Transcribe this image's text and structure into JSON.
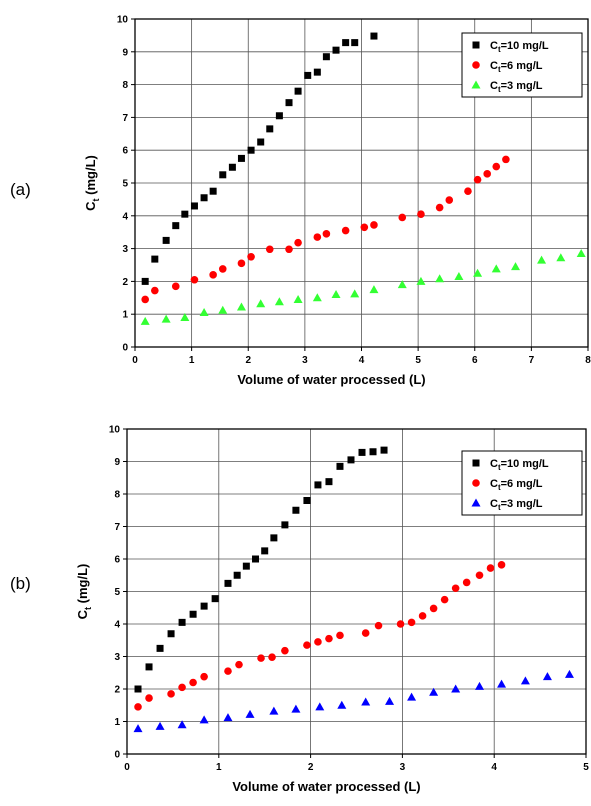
{
  "panels": [
    "(a)",
    "(b)"
  ],
  "chart_data": [
    {
      "type": "scatter",
      "panel": "(a)",
      "xlabel": "Volume of water processed (L)",
      "ylabel_main": "C",
      "ylabel_sub": "t",
      "ylabel_rest": " (mg/L)",
      "xlim": [
        0,
        8
      ],
      "ylim": [
        0,
        10
      ],
      "xticks": [
        "0",
        "1",
        "2",
        "3",
        "4",
        "5",
        "6",
        "7",
        "8"
      ],
      "yticks": [
        "0",
        "1",
        "2",
        "3",
        "4",
        "5",
        "6",
        "7",
        "8",
        "9",
        "10"
      ],
      "grid": true,
      "legend_position": "top-right",
      "series": [
        {
          "label_main": "C",
          "label_sub": "t",
          "label_rest": "=10 mg/L",
          "marker": "square",
          "color": "#000000",
          "x": [
            0.18,
            0.35,
            0.55,
            0.72,
            0.88,
            1.05,
            1.22,
            1.38,
            1.55,
            1.72,
            1.88,
            2.05,
            2.22,
            2.38,
            2.55,
            2.72,
            2.88,
            3.05,
            3.22,
            3.38,
            3.55,
            3.72,
            3.88,
            4.22
          ],
          "y": [
            2.0,
            2.68,
            3.25,
            3.7,
            4.05,
            4.3,
            4.55,
            4.75,
            5.25,
            5.48,
            5.75,
            6.0,
            6.25,
            6.65,
            7.05,
            7.45,
            7.8,
            8.28,
            8.38,
            8.85,
            9.05,
            9.28,
            9.28,
            9.48
          ]
        },
        {
          "label_main": "C",
          "label_sub": "t",
          "label_rest": "=6 mg/L",
          "marker": "circle",
          "color": "#ff0000",
          "x": [
            0.18,
            0.35,
            0.72,
            1.05,
            1.38,
            1.55,
            1.88,
            2.05,
            2.38,
            2.72,
            2.88,
            3.22,
            3.38,
            3.72,
            4.05,
            4.22,
            4.72,
            5.05,
            5.38,
            5.55,
            5.88,
            6.05,
            6.22,
            6.38,
            6.55
          ],
          "y": [
            1.45,
            1.72,
            1.85,
            2.05,
            2.2,
            2.38,
            2.55,
            2.75,
            2.98,
            2.98,
            3.18,
            3.35,
            3.45,
            3.55,
            3.65,
            3.72,
            3.95,
            4.05,
            4.25,
            4.48,
            4.75,
            5.1,
            5.28,
            5.5,
            5.72
          ]
        },
        {
          "label_main": "C",
          "label_sub": "t",
          "label_rest": "=3 mg/L",
          "marker": "triangle",
          "color": "#33ff33",
          "x": [
            0.18,
            0.55,
            0.88,
            1.22,
            1.55,
            1.88,
            2.22,
            2.55,
            2.88,
            3.22,
            3.55,
            3.88,
            4.22,
            4.72,
            5.05,
            5.38,
            5.72,
            6.05,
            6.38,
            6.72,
            7.18,
            7.52,
            7.88
          ],
          "y": [
            0.78,
            0.85,
            0.9,
            1.05,
            1.12,
            1.22,
            1.32,
            1.38,
            1.45,
            1.5,
            1.6,
            1.62,
            1.75,
            1.9,
            2.0,
            2.08,
            2.15,
            2.25,
            2.38,
            2.45,
            2.65,
            2.72,
            2.85
          ]
        }
      ]
    },
    {
      "type": "scatter",
      "panel": "(b)",
      "xlabel": "Volume of water processed (L)",
      "ylabel_main": "C",
      "ylabel_sub": "t",
      "ylabel_rest": " (mg/L)",
      "xlim": [
        0,
        5
      ],
      "ylim": [
        0,
        10
      ],
      "xticks": [
        "0",
        "1",
        "2",
        "3",
        "4",
        "5"
      ],
      "yticks": [
        "0",
        "1",
        "2",
        "3",
        "4",
        "5",
        "6",
        "7",
        "8",
        "9",
        "10"
      ],
      "grid": true,
      "legend_position": "top-right",
      "series": [
        {
          "label_main": "C",
          "label_sub": "t",
          "label_rest": "=10 mg/L",
          "marker": "square",
          "color": "#000000",
          "x": [
            0.12,
            0.24,
            0.36,
            0.48,
            0.6,
            0.72,
            0.84,
            0.96,
            1.1,
            1.2,
            1.3,
            1.4,
            1.5,
            1.6,
            1.72,
            1.84,
            1.96,
            2.08,
            2.2,
            2.32,
            2.44,
            2.56,
            2.68,
            2.8
          ],
          "y": [
            2.0,
            2.68,
            3.25,
            3.7,
            4.05,
            4.3,
            4.55,
            4.78,
            5.25,
            5.5,
            5.78,
            6.0,
            6.25,
            6.65,
            7.05,
            7.5,
            7.8,
            8.28,
            8.38,
            8.85,
            9.05,
            9.28,
            9.3,
            9.35
          ]
        },
        {
          "label_main": "C",
          "label_sub": "t",
          "label_rest": "=6 mg/L",
          "marker": "circle",
          "color": "#ff0000",
          "x": [
            0.12,
            0.24,
            0.48,
            0.6,
            0.72,
            0.84,
            1.1,
            1.22,
            1.46,
            1.58,
            1.72,
            1.96,
            2.08,
            2.2,
            2.32,
            2.6,
            2.74,
            2.98,
            3.1,
            3.22,
            3.34,
            3.46,
            3.58,
            3.7,
            3.84,
            3.96,
            4.08
          ],
          "y": [
            1.45,
            1.72,
            1.85,
            2.05,
            2.2,
            2.38,
            2.55,
            2.75,
            2.95,
            2.98,
            3.18,
            3.35,
            3.45,
            3.55,
            3.65,
            3.72,
            3.95,
            4.0,
            4.05,
            4.25,
            4.48,
            4.75,
            5.1,
            5.28,
            5.5,
            5.72,
            5.82
          ]
        },
        {
          "label_main": "C",
          "label_sub": "t",
          "label_rest": "=3 mg/L",
          "marker": "triangle",
          "color": "#0000ff",
          "x": [
            0.12,
            0.36,
            0.6,
            0.84,
            1.1,
            1.34,
            1.6,
            1.84,
            2.1,
            2.34,
            2.6,
            2.86,
            3.1,
            3.34,
            3.58,
            3.84,
            4.08,
            4.34,
            4.58,
            4.82
          ],
          "y": [
            0.78,
            0.85,
            0.9,
            1.05,
            1.12,
            1.22,
            1.32,
            1.38,
            1.45,
            1.5,
            1.6,
            1.62,
            1.75,
            1.9,
            2.0,
            2.08,
            2.15,
            2.25,
            2.38,
            2.45
          ]
        }
      ]
    }
  ]
}
